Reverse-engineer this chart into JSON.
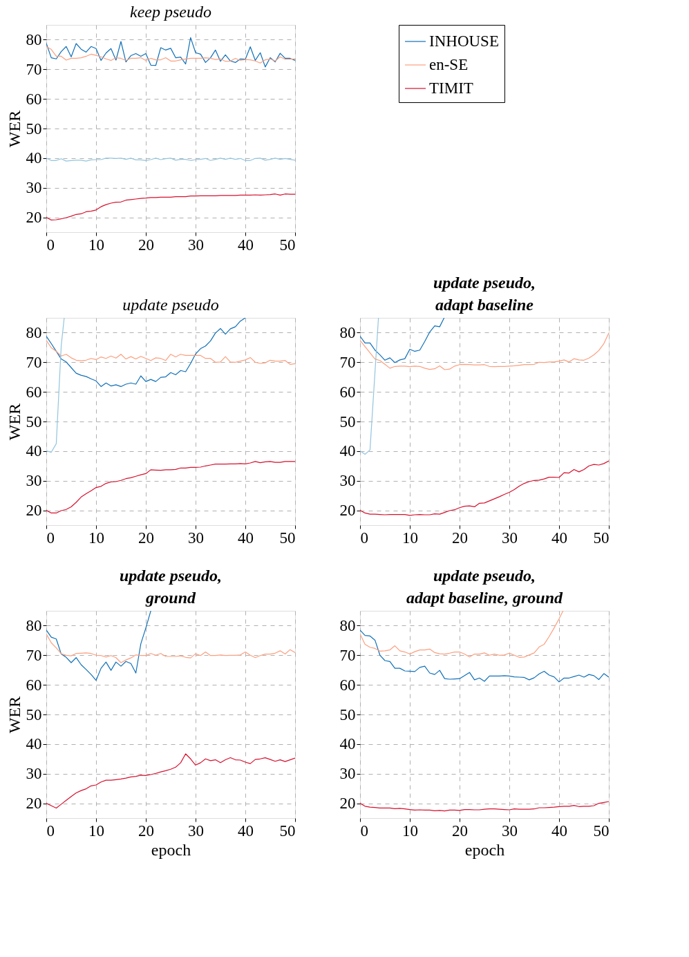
{
  "chart_data": [
    {
      "type": "line",
      "title": "keep pseudo",
      "ylabel": "WER",
      "xlim": [
        0,
        50
      ],
      "ylim": [
        15,
        85
      ],
      "xticks": [
        0,
        10,
        20,
        30,
        40,
        50
      ],
      "yticks": [
        20,
        30,
        40,
        50,
        60,
        70,
        80
      ],
      "grid": true,
      "legend": "right",
      "x": [
        0,
        1,
        2,
        3,
        4,
        5,
        6,
        7,
        8,
        9,
        10,
        11,
        12,
        13,
        14,
        15,
        16,
        17,
        18,
        19,
        20,
        21,
        22,
        23,
        24,
        25,
        26,
        27,
        28,
        29,
        30,
        31,
        32,
        33,
        34,
        35,
        36,
        37,
        38,
        39,
        40,
        41,
        42,
        43,
        44,
        45,
        46,
        47,
        48,
        49,
        50
      ],
      "series": [
        {
          "name": "INHOUSE",
          "color": "#1070b8",
          "values": [
            78.8,
            73.9,
            73.5,
            76,
            77.7,
            74.2,
            78.7,
            76.8,
            75.8,
            77.7,
            77,
            73,
            75.5,
            77,
            73.1,
            79.4,
            72.5,
            74.6,
            75.3,
            74.4,
            75.3,
            71.4,
            71.3,
            77.3,
            76.5,
            77.1,
            73.9,
            74.1,
            71.8,
            80.7,
            75.6,
            75.1,
            72.3,
            73.9,
            76.5,
            72.7,
            74.9,
            72.8,
            72.3,
            73.5,
            73.4,
            77.6,
            73,
            75.6,
            70.8,
            73.9,
            72.5,
            75.4,
            73.7,
            73.7,
            73
          ]
        },
        {
          "name": "en-SE",
          "color": "#fc9f7e",
          "values": [
            77.7,
            76.7,
            74.4,
            74.4,
            73.1,
            73.7,
            73.7,
            73.9,
            74.4,
            75.1,
            74.7,
            74.2,
            73.5,
            73,
            73.9,
            73.7,
            73,
            73.7,
            73.7,
            73.9,
            73,
            73.7,
            73.2,
            73.2,
            73.9,
            72.8,
            72.8,
            73.2,
            73.5,
            73.7,
            73.7,
            73.7,
            73.9,
            73.7,
            73.3,
            73.5,
            72.7,
            72.8,
            73.7,
            73,
            73.3,
            73.2,
            72.8,
            72.1,
            73.2,
            73.5,
            72.8,
            74.2,
            73.4,
            73.4,
            73.5
          ]
        },
        {
          "color": "#92c5de",
          "values": [
            40,
            39.2,
            39.2,
            39.8,
            39,
            39.2,
            39.3,
            39.3,
            39,
            39.4,
            39.5,
            39.5,
            40,
            40,
            39.9,
            40,
            39.6,
            40,
            39.4,
            39.4,
            39.2,
            39.5,
            40,
            39.5,
            39.8,
            40,
            39.3,
            39.6,
            39.6,
            39.2,
            39.5,
            39.6,
            39.9,
            39.2,
            39.6,
            40,
            39.6,
            40,
            39.6,
            39.9,
            39.2,
            39.2,
            39.9,
            40,
            39.3,
            39.6,
            40,
            39.6,
            39.9,
            39.6,
            39.3
          ]
        },
        {
          "name": "TIMIT",
          "color": "#d6112e",
          "values": [
            20,
            19.1,
            19.2,
            19.5,
            19.9,
            20.4,
            21,
            21.2,
            21.9,
            22.1,
            22.5,
            23.6,
            24.3,
            24.8,
            25.1,
            25.2,
            25.8,
            26,
            26.2,
            26.4,
            26.5,
            26.7,
            26.7,
            26.8,
            26.8,
            26.8,
            27,
            27,
            27,
            27.2,
            27.2,
            27.3,
            27.3,
            27.3,
            27.3,
            27.4,
            27.4,
            27.4,
            27.4,
            27.5,
            27.5,
            27.5,
            27.6,
            27.5,
            27.6,
            27.7,
            27.9,
            27.5,
            27.9,
            27.8,
            27.8
          ]
        }
      ]
    },
    {
      "type": "line",
      "title": "update pseudo",
      "ylabel": "WER",
      "xlim": [
        0,
        50
      ],
      "ylim": [
        15,
        85
      ],
      "xticks": [
        0,
        10,
        20,
        30,
        40,
        50
      ],
      "yticks": [
        20,
        30,
        40,
        50,
        60,
        70,
        80
      ],
      "grid": true,
      "x": [
        0,
        1,
        2,
        3,
        4,
        5,
        6,
        7,
        8,
        9,
        10,
        11,
        12,
        13,
        14,
        15,
        16,
        17,
        18,
        19,
        20,
        21,
        22,
        23,
        24,
        25,
        26,
        27,
        28,
        29,
        30,
        31,
        32,
        33,
        34,
        35,
        36,
        37,
        38,
        39,
        40,
        41,
        42,
        43,
        44,
        45,
        46,
        47,
        48,
        49,
        50
      ],
      "series": [
        {
          "color": "#1070b8",
          "x": [
            0,
            1,
            2,
            3,
            4,
            5,
            6,
            7,
            8,
            9,
            10,
            11,
            12,
            13,
            14,
            15,
            16,
            17,
            18,
            19,
            20,
            21,
            22,
            23,
            24,
            25,
            26,
            27,
            28,
            29,
            30,
            31,
            32,
            33,
            34,
            35,
            36,
            37,
            38,
            39,
            40
          ],
          "values": [
            78.8,
            76.3,
            73.7,
            71.1,
            70.1,
            68.2,
            66.3,
            65.6,
            65.2,
            64.4,
            63.7,
            61.8,
            63,
            62,
            62.4,
            61.8,
            62.6,
            63,
            62.6,
            65.4,
            63.5,
            64.2,
            63.5,
            64.9,
            65.1,
            66.5,
            65.8,
            67.2,
            66.8,
            69.6,
            72.8,
            74.6,
            75.5,
            77.2,
            79.9,
            81.4,
            79.5,
            81.3,
            82,
            83.9,
            85
          ]
        },
        {
          "color": "#fc9f7e",
          "values": [
            77.4,
            74.9,
            73.7,
            72.1,
            72.7,
            71.5,
            70.7,
            70.5,
            70.7,
            71.3,
            70.9,
            71.8,
            71.3,
            72.1,
            71.4,
            72.7,
            71.1,
            71.9,
            71.1,
            72,
            71.3,
            70.6,
            71.5,
            71.3,
            70.6,
            72.7,
            71.8,
            72.7,
            72.3,
            72.3,
            72.3,
            72.3,
            71.3,
            71.3,
            70,
            70.1,
            71.9,
            70.1,
            70,
            70.4,
            70.8,
            71.6,
            70,
            69.6,
            69.8,
            70.7,
            70.4,
            70.4,
            70.6,
            69.3,
            69.5
          ]
        },
        {
          "color": "#92c5de",
          "x": [
            0,
            1,
            2,
            3,
            3.6
          ],
          "values": [
            40.1,
            39.6,
            42.5,
            75.6,
            85
          ]
        },
        {
          "color": "#d6112e",
          "values": [
            20,
            19.1,
            19.1,
            19.9,
            20.3,
            21.2,
            22.7,
            24.5,
            25.6,
            26.6,
            27.7,
            28.1,
            29.1,
            29.6,
            29.7,
            30.1,
            30.7,
            31,
            31.5,
            32,
            32.4,
            33.7,
            33.6,
            33.5,
            33.7,
            33.7,
            33.8,
            34.3,
            34.3,
            34.5,
            34.5,
            34.6,
            35,
            35.3,
            35.6,
            35.6,
            35.6,
            35.7,
            35.7,
            35.8,
            35.7,
            36,
            36.5,
            36.1,
            36.4,
            36.5,
            36.2,
            36.2,
            36.5,
            36.5,
            36.5
          ]
        }
      ]
    },
    {
      "type": "line",
      "title": "update pseudo,\nadapt baseline",
      "xlim": [
        0,
        50
      ],
      "ylim": [
        15,
        85
      ],
      "xticks": [
        0,
        10,
        20,
        30,
        40,
        50
      ],
      "yticks": [
        20,
        30,
        40,
        50,
        60,
        70,
        80
      ],
      "grid": true,
      "x": [
        0,
        1,
        2,
        3,
        4,
        5,
        6,
        7,
        8,
        9,
        10,
        11,
        12,
        13,
        14,
        15,
        16,
        17,
        18,
        19,
        20,
        21,
        22,
        23,
        24,
        25,
        26,
        27,
        28,
        29,
        30,
        31,
        32,
        33,
        34,
        35,
        36,
        37,
        38,
        39,
        40,
        41,
        42,
        43,
        44,
        45,
        46,
        47,
        48,
        49,
        50
      ],
      "series": [
        {
          "color": "#1070b8",
          "x": [
            0,
            1,
            2,
            3,
            4,
            5,
            6,
            7,
            8,
            9,
            10,
            11,
            12,
            13,
            14,
            15,
            16,
            16.9
          ],
          "values": [
            78.8,
            76.5,
            76.5,
            74.1,
            72.5,
            70.7,
            71.5,
            69.9,
            70.8,
            71.2,
            74.4,
            73.7,
            74.1,
            77,
            80.2,
            82.3,
            82,
            85
          ]
        },
        {
          "color": "#fc9f7e",
          "values": [
            77.4,
            75.3,
            73.2,
            71.1,
            70.6,
            69.3,
            68,
            68.6,
            68.7,
            68.7,
            68.5,
            68.7,
            68.6,
            68,
            67.6,
            67.8,
            68.8,
            67.5,
            67.7,
            68.7,
            69.2,
            69.3,
            69.2,
            69.1,
            69.1,
            69.2,
            68.6,
            68.5,
            68.6,
            68.6,
            68.7,
            68.8,
            69,
            69.2,
            69.2,
            69.3,
            70,
            69.9,
            70.1,
            70.1,
            70.4,
            70.8,
            70.1,
            71.2,
            70.8,
            70.7,
            71.4,
            72.5,
            74,
            76.3,
            79.9
          ]
        },
        {
          "color": "#92c5de",
          "x": [
            0,
            1,
            2,
            3.7
          ],
          "values": [
            40.1,
            38.9,
            40.4,
            85
          ]
        },
        {
          "color": "#d6112e",
          "values": [
            20,
            19.1,
            18.7,
            18.7,
            18.6,
            18.5,
            18.6,
            18.6,
            18.6,
            18.6,
            18.3,
            18.5,
            18.6,
            18.5,
            18.5,
            18.8,
            18.7,
            19.3,
            19.9,
            20.2,
            20.9,
            21.4,
            21.5,
            21.2,
            22.4,
            22.5,
            23.2,
            23.9,
            24.6,
            25.4,
            26.1,
            27,
            28.2,
            29.1,
            29.7,
            30.1,
            30.2,
            30.6,
            31.2,
            31.2,
            31.1,
            32.7,
            32.6,
            33.8,
            33,
            33.8,
            35,
            35.5,
            35.3,
            35.8,
            36.7
          ]
        }
      ]
    },
    {
      "type": "line",
      "title": "update pseudo,\nground",
      "xlabel": "epoch",
      "ylabel": "WER",
      "xlim": [
        0,
        50
      ],
      "ylim": [
        15,
        85
      ],
      "xticks": [
        0,
        10,
        20,
        30,
        40,
        50
      ],
      "yticks": [
        20,
        30,
        40,
        50,
        60,
        70,
        80
      ],
      "grid": true,
      "x": [
        0,
        1,
        2,
        3,
        4,
        5,
        6,
        7,
        8,
        9,
        10,
        11,
        12,
        13,
        14,
        15,
        16,
        17,
        18,
        19,
        20,
        21,
        22,
        23,
        24,
        25,
        26,
        27,
        28,
        29,
        30,
        31,
        32,
        33,
        34,
        35,
        36,
        37,
        38,
        39,
        40,
        41,
        42,
        43,
        44,
        45,
        46,
        47,
        48,
        49,
        50
      ],
      "series": [
        {
          "color": "#1070b8",
          "x": [
            0,
            1,
            2,
            3,
            4,
            5,
            6,
            7,
            8,
            9,
            10,
            11,
            12,
            13,
            14,
            15,
            16,
            17,
            18,
            19,
            20,
            21
          ],
          "values": [
            78.5,
            76.1,
            75.5,
            70.4,
            69.3,
            67.5,
            69.2,
            66.8,
            65.2,
            63.5,
            61.5,
            65.6,
            67.7,
            64.9,
            67.7,
            66.3,
            67.9,
            67.2,
            64,
            73.9,
            79.2,
            85
          ]
        },
        {
          "color": "#fc9f7e",
          "values": [
            77.2,
            74.2,
            72.5,
            70.5,
            70,
            69.8,
            70.6,
            70.7,
            70.8,
            70.6,
            70,
            69.9,
            69.4,
            69.9,
            69.2,
            67.5,
            68.4,
            69.1,
            70.1,
            69.9,
            69.9,
            70.6,
            70,
            70.6,
            69.6,
            69.6,
            69.6,
            69.8,
            69.3,
            69.1,
            70.5,
            69.9,
            71.1,
            69.9,
            69.9,
            70.1,
            69.9,
            70,
            70,
            70.1,
            71.1,
            70,
            69.2,
            69.9,
            70.4,
            70.4,
            70.7,
            71.5,
            70.4,
            71.9,
            70.9
          ]
        },
        {
          "color": "#d6112e",
          "values": [
            20,
            19.2,
            18.4,
            19.7,
            21,
            22.3,
            23.5,
            24.3,
            24.9,
            25.9,
            26.2,
            27.2,
            27.8,
            27.8,
            28,
            28.2,
            28.5,
            28.9,
            29.1,
            29.5,
            29.4,
            29.7,
            30.1,
            30.6,
            31,
            31.5,
            32.2,
            33.7,
            36.7,
            35,
            32.9,
            33.7,
            35,
            34.4,
            34.7,
            33.7,
            34.7,
            35.4,
            34.7,
            34.6,
            33.9,
            33.4,
            34.8,
            35,
            35.4,
            34.8,
            34.2,
            34.7,
            34.1,
            34.7,
            35.3
          ]
        }
      ]
    },
    {
      "type": "line",
      "title": "update pseudo,\nadapt baseline, ground",
      "xlabel": "epoch",
      "xlim": [
        0,
        50
      ],
      "ylim": [
        15,
        85
      ],
      "xticks": [
        0,
        10,
        20,
        30,
        40,
        50
      ],
      "yticks": [
        20,
        30,
        40,
        50,
        60,
        70,
        80
      ],
      "grid": true,
      "x": [
        0,
        1,
        2,
        3,
        4,
        5,
        6,
        7,
        8,
        9,
        10,
        11,
        12,
        13,
        14,
        15,
        16,
        17,
        18,
        19,
        20,
        21,
        22,
        23,
        24,
        25,
        26,
        27,
        28,
        29,
        30,
        31,
        32,
        33,
        34,
        35,
        36,
        37,
        38,
        39,
        40,
        41,
        42,
        43,
        44,
        45,
        46,
        47,
        48,
        49,
        50
      ],
      "series": [
        {
          "color": "#1070b8",
          "values": [
            78.5,
            76.7,
            76.5,
            75.1,
            70,
            68.2,
            67.9,
            65.6,
            65.6,
            64.7,
            64.6,
            64.5,
            65.9,
            66.3,
            64,
            63.5,
            64.9,
            62.1,
            61.9,
            62,
            62.1,
            63.1,
            64.2,
            61.7,
            62.3,
            61.2,
            63,
            63,
            63,
            63.1,
            63,
            62.7,
            62.6,
            62.5,
            61.7,
            62.4,
            63.7,
            64.6,
            63.3,
            62.7,
            61,
            62.3,
            62.3,
            62.8,
            63.3,
            62.6,
            63.5,
            63.1,
            61.8,
            63.8,
            62.6
          ]
        },
        {
          "color": "#fc9f7e",
          "x": [
            0,
            1,
            2,
            3,
            4,
            5,
            6,
            7,
            8,
            9,
            10,
            11,
            12,
            13,
            14,
            15,
            16,
            17,
            18,
            19,
            20,
            21,
            22,
            23,
            24,
            25,
            26,
            27,
            28,
            29,
            30,
            31,
            32,
            33,
            34,
            35,
            36,
            37,
            38,
            39,
            40,
            40.8
          ],
          "values": [
            77.2,
            73.7,
            72.7,
            72.3,
            71.4,
            71.5,
            71.8,
            73.2,
            71.5,
            71.1,
            70.4,
            71.2,
            71.8,
            71.8,
            72.1,
            70.9,
            70.5,
            70.4,
            70.7,
            71.1,
            71.1,
            70.4,
            69.4,
            70.4,
            70.4,
            70.8,
            70,
            70.4,
            70,
            70.1,
            70.7,
            70,
            69.3,
            69.4,
            70.1,
            70.8,
            72.8,
            73.7,
            76.3,
            79.2,
            82.3,
            85
          ]
        },
        {
          "color": "#d6112e",
          "values": [
            20,
            19,
            18.7,
            18.6,
            18.4,
            18.4,
            18.4,
            18.2,
            18.3,
            18.1,
            17.9,
            17.7,
            17.8,
            17.7,
            17.7,
            17.5,
            17.6,
            17.4,
            17.7,
            17.7,
            17.6,
            17.9,
            17.9,
            17.8,
            17.8,
            18,
            18.1,
            18.1,
            18,
            17.9,
            17.8,
            18.1,
            18,
            18,
            18,
            18.1,
            18.5,
            18.5,
            18.6,
            18.7,
            18.9,
            19,
            19,
            19.3,
            18.9,
            19,
            19,
            19.2,
            20,
            20.3,
            20.6
          ]
        }
      ]
    }
  ]
}
